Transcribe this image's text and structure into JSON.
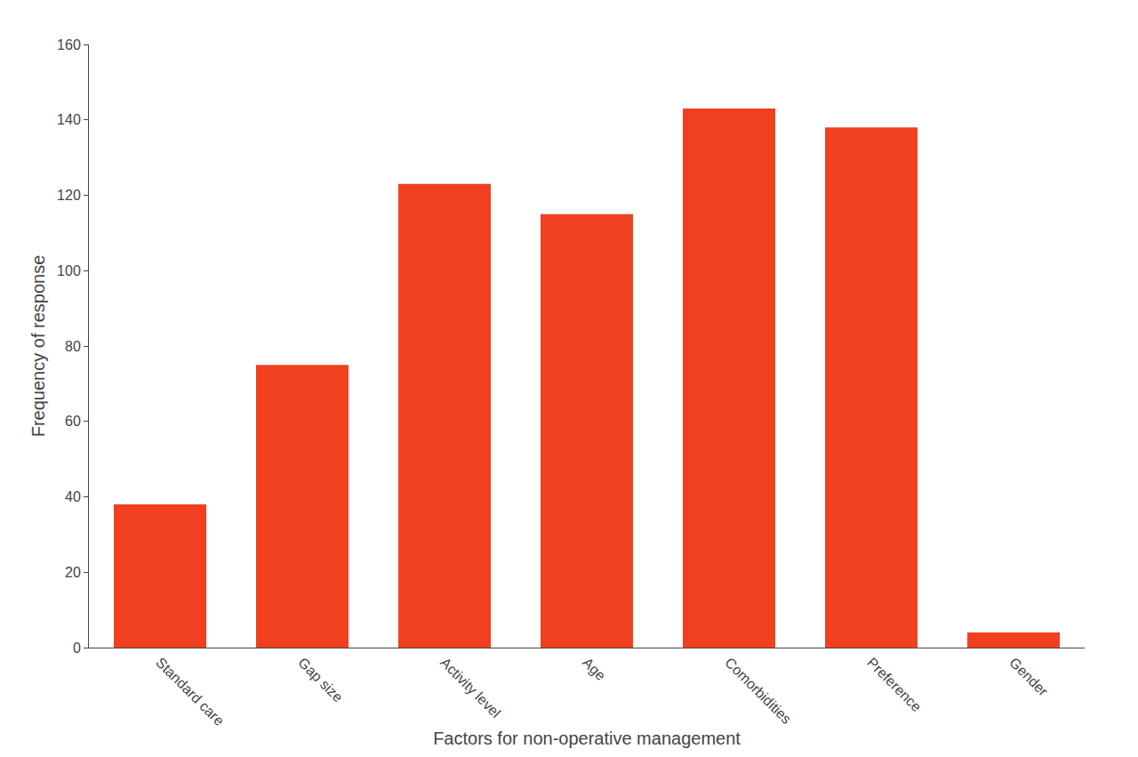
{
  "chart_data": {
    "type": "bar",
    "categories": [
      "Standard care",
      "Gap size",
      "Activity level",
      "Age",
      "Comorbidities",
      "Preference",
      "Gender"
    ],
    "values": [
      38,
      75,
      123,
      115,
      143,
      138,
      4
    ],
    "color": "#F04020",
    "xlabel": "Factors for non-operative management",
    "ylabel": "Frequency of response",
    "ylim": [
      0,
      160
    ],
    "yticks": [
      0,
      20,
      40,
      60,
      80,
      100,
      120,
      140,
      160
    ],
    "grid": false
  }
}
